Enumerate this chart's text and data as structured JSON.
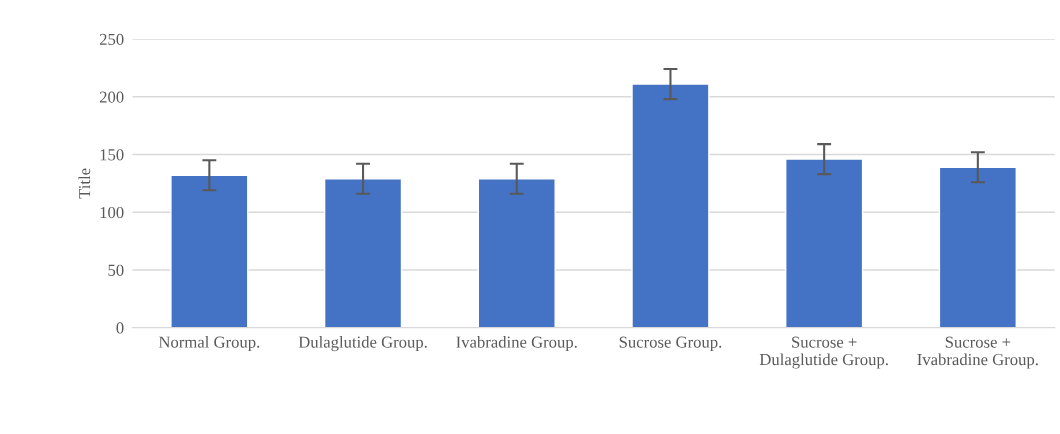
{
  "chart_data": {
    "type": "bar",
    "ylabel": "Title",
    "categories": [
      "Normal Group.",
      "Dulaglutide Group.",
      "Ivabradine Group.",
      "Sucrose Group.",
      "Sucrose + Dulaglutide Group.",
      "Sucrose + Ivabradine Group."
    ],
    "values": [
      132,
      129,
      129,
      211,
      146,
      139
    ],
    "errors": [
      13,
      13,
      13,
      13,
      13,
      13
    ],
    "color": "#4472c4",
    "ylim": [
      0,
      250
    ],
    "yticks": [
      0,
      50,
      100,
      150,
      200,
      250
    ],
    "grid": "y"
  }
}
